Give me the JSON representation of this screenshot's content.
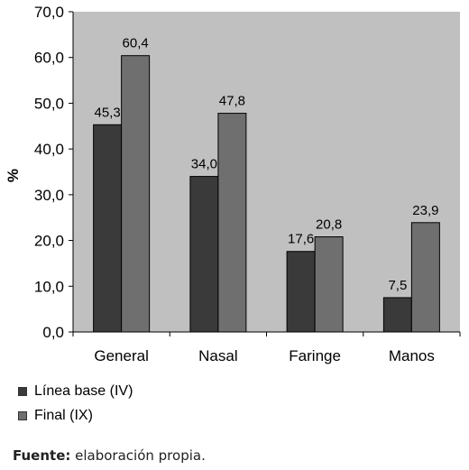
{
  "chart_data": {
    "type": "bar",
    "categories": [
      "General",
      "Nasal",
      "Faringe",
      "Manos"
    ],
    "series": [
      {
        "name": "Línea base (IV)",
        "values": [
          45.3,
          34.0,
          17.6,
          7.5
        ],
        "labels": [
          "45,3",
          "34,0",
          "17,6",
          "7,5"
        ],
        "color": "#3a3a3a"
      },
      {
        "name": "Final (IX)",
        "values": [
          60.4,
          47.8,
          20.8,
          23.9
        ],
        "labels": [
          "60,4",
          "47,8",
          "20,8",
          "23,9"
        ],
        "color": "#6f6f6f"
      }
    ],
    "ylabel": "%",
    "ylim": [
      0,
      70
    ],
    "yticks": [
      0,
      10,
      20,
      30,
      40,
      50,
      60,
      70
    ],
    "ytick_labels": [
      "0,0",
      "10,0",
      "20,0",
      "30,0",
      "40,0",
      "50,0",
      "60,0",
      "70,0"
    ],
    "plot_background": "#c0c0c0",
    "legend_position": "bottom-left",
    "grid": false
  },
  "source": {
    "label": "Fuente:",
    "text": " elaboración propia."
  }
}
